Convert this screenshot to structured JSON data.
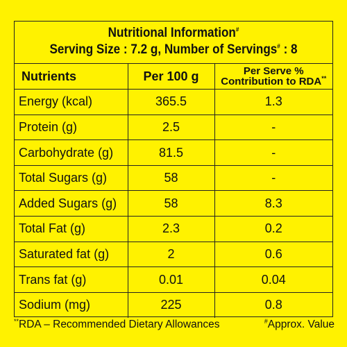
{
  "header": {
    "title": "Nutritional Information",
    "title_mark": "#",
    "serving_prefix": "Serving Size : 7.2 g, Number of Servings",
    "serving_mark": "#",
    "serving_suffix": " : 8"
  },
  "table": {
    "columns": {
      "nutrients": "Nutrients",
      "per100": "Per 100 g",
      "perserve_line1": "Per Serve %",
      "perserve_line2": "Contribution to RDA",
      "perserve_mark": "**"
    },
    "rows": [
      {
        "name": "Energy (kcal)",
        "per100": "365.5",
        "rda": "1.3"
      },
      {
        "name": "Protein (g)",
        "per100": "2.5",
        "rda": "-"
      },
      {
        "name": "Carbohydrate (g)",
        "per100": "81.5",
        "rda": "-"
      },
      {
        "name": "Total Sugars (g)",
        "per100": "58",
        "rda": "-"
      },
      {
        "name": "Added Sugars (g)",
        "per100": "58",
        "rda": "8.3"
      },
      {
        "name": "Total Fat (g)",
        "per100": "2.3",
        "rda": "0.2"
      },
      {
        "name": "Saturated fat (g)",
        "per100": "2",
        "rda": "0.6"
      },
      {
        "name": "Trans fat (g)",
        "per100": "0.01",
        "rda": "0.04"
      },
      {
        "name": "Sodium (mg)",
        "per100": "225",
        "rda": "0.8"
      }
    ]
  },
  "footer": {
    "left_mark": "**",
    "left_text": "RDA – Recommended Dietary Allowances",
    "right_mark": "#",
    "right_text": "Approx. Value"
  },
  "colors": {
    "background": "#fff200",
    "ink": "#111111"
  }
}
